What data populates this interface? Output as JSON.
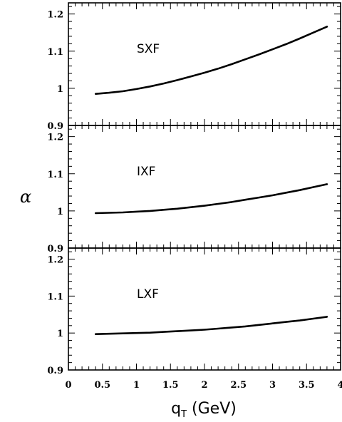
{
  "chart_data": {
    "type": "line",
    "ylabel": "α",
    "xlabel": "q",
    "xlabel_sub": "T",
    "xlabel_unit": " (GeV)",
    "xlim": [
      0,
      4
    ],
    "x_ticks": [
      0,
      0.5,
      1,
      1.5,
      2,
      2.5,
      3,
      3.5,
      4
    ],
    "x_tick_labels": [
      "0",
      "0.5",
      "1",
      "1.5",
      "2",
      "2.5",
      "3",
      "3.5",
      "4"
    ],
    "panels": [
      {
        "label": "SXF",
        "ylim": [
          0.9,
          1.23
        ],
        "y_ticks": [
          0.9,
          1.0,
          1.1,
          1.2
        ],
        "y_tick_labels": [
          "0.9",
          "1",
          "1.1",
          "1.2"
        ],
        "series": [
          {
            "x": [
              0.4,
              0.6,
              0.8,
              1.0,
              1.2,
              1.4,
              1.6,
              1.8,
              2.0,
              2.2,
              2.4,
              2.6,
              2.8,
              3.0,
              3.2,
              3.4,
              3.6,
              3.8
            ],
            "y": [
              0.985,
              0.988,
              0.992,
              0.998,
              1.005,
              1.013,
              1.022,
              1.032,
              1.042,
              1.053,
              1.065,
              1.078,
              1.091,
              1.105,
              1.119,
              1.134,
              1.15,
              1.166
            ]
          }
        ]
      },
      {
        "label": "IXF",
        "ylim": [
          0.9,
          1.23
        ],
        "y_ticks": [
          0.9,
          1.0,
          1.1,
          1.2
        ],
        "y_tick_labels": [
          "0.9",
          "1",
          "1.1",
          "1.2"
        ],
        "series": [
          {
            "x": [
              0.4,
              0.6,
              0.8,
              1.0,
              1.2,
              1.4,
              1.6,
              1.8,
              2.0,
              2.2,
              2.4,
              2.6,
              2.8,
              3.0,
              3.2,
              3.4,
              3.6,
              3.8
            ],
            "y": [
              0.994,
              0.995,
              0.996,
              0.998,
              1.0,
              1.003,
              1.006,
              1.01,
              1.014,
              1.019,
              1.024,
              1.03,
              1.036,
              1.042,
              1.049,
              1.056,
              1.064,
              1.072
            ]
          }
        ]
      },
      {
        "label": "LXF",
        "ylim": [
          0.9,
          1.23
        ],
        "y_ticks": [
          0.9,
          1.0,
          1.1,
          1.2
        ],
        "y_tick_labels": [
          "0.9",
          "1",
          "1.1",
          "1.2"
        ],
        "series": [
          {
            "x": [
              0.4,
              0.6,
              0.8,
              1.0,
              1.2,
              1.4,
              1.6,
              1.8,
              2.0,
              2.2,
              2.4,
              2.6,
              2.8,
              3.0,
              3.2,
              3.4,
              3.6,
              3.8
            ],
            "y": [
              0.997,
              0.998,
              0.999,
              1.0,
              1.001,
              1.003,
              1.005,
              1.007,
              1.009,
              1.012,
              1.015,
              1.018,
              1.022,
              1.026,
              1.03,
              1.034,
              1.039,
              1.044
            ]
          }
        ]
      }
    ]
  }
}
